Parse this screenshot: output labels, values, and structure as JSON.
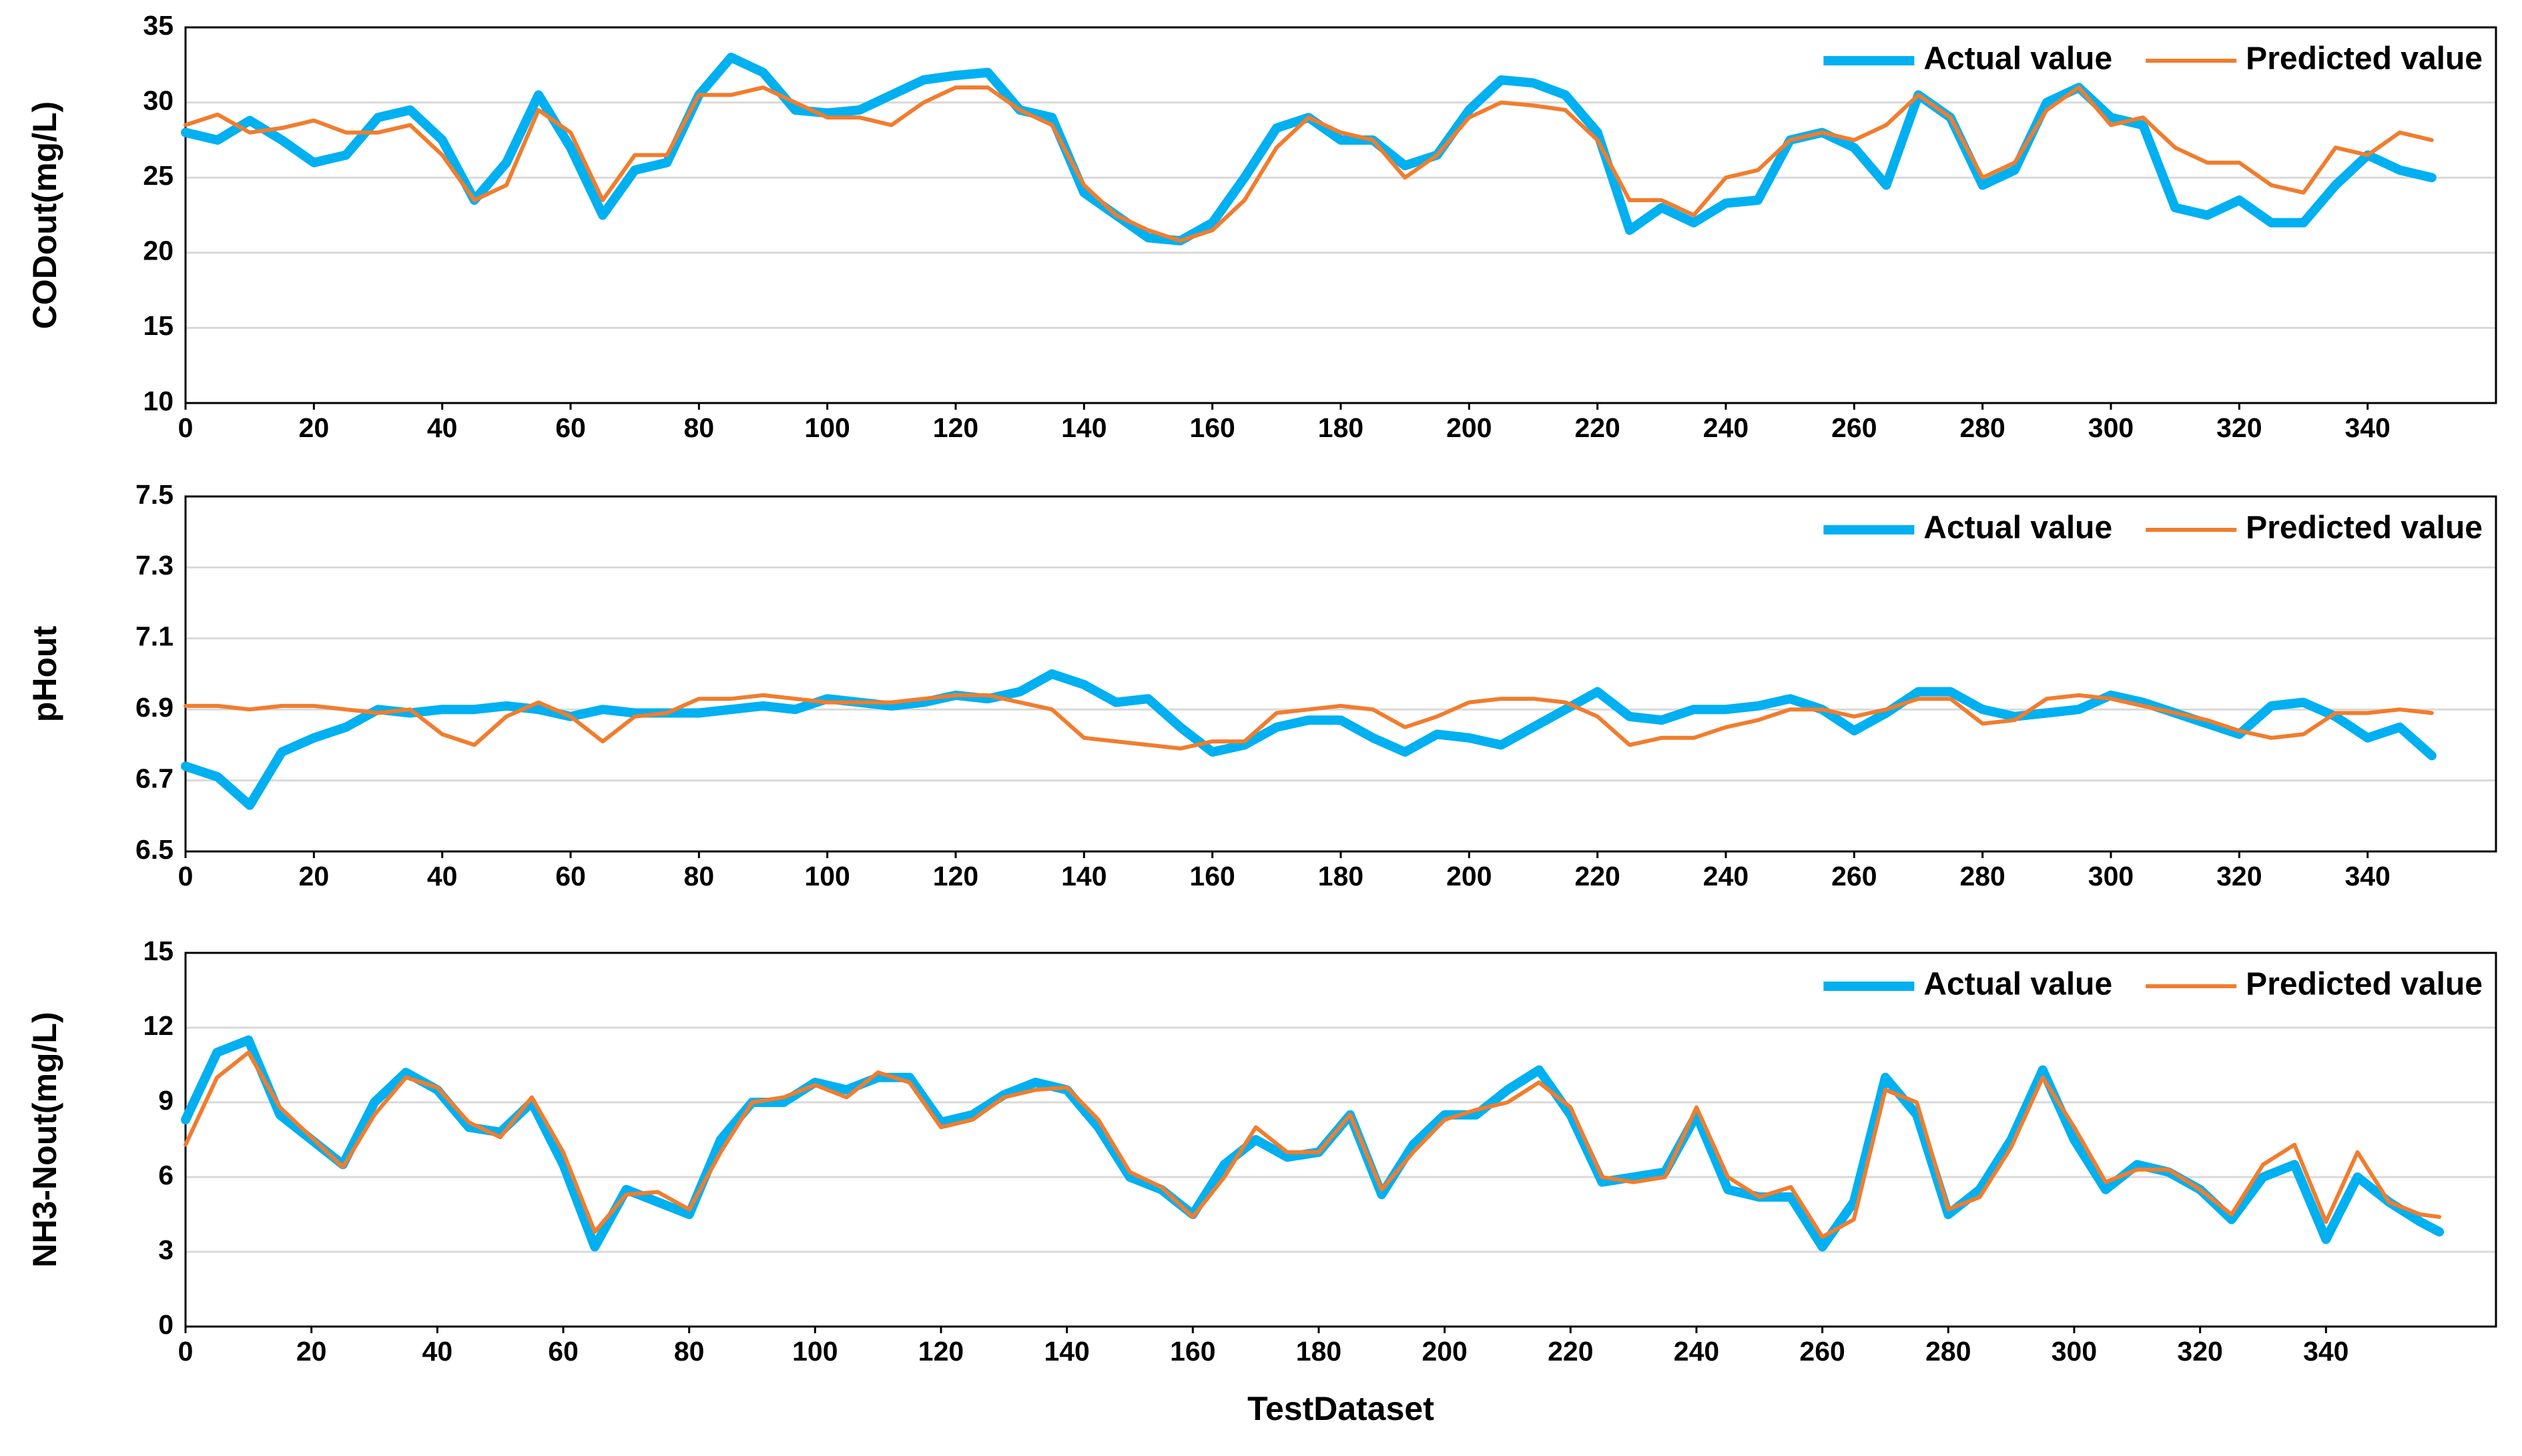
{
  "chart_data": [
    {
      "type": "line",
      "ylabel": "CODout(mg/L)",
      "xlim": [
        0,
        360
      ],
      "ylim": [
        10,
        35
      ],
      "yticks": [
        10,
        15,
        20,
        25,
        30,
        35
      ],
      "xticks": [
        0,
        20,
        40,
        60,
        80,
        100,
        120,
        140,
        160,
        180,
        200,
        220,
        240,
        260,
        280,
        300,
        320,
        340
      ],
      "grid": true,
      "legend": "upper right",
      "x": [
        0,
        5,
        10,
        15,
        20,
        25,
        30,
        35,
        40,
        45,
        50,
        55,
        60,
        65,
        70,
        75,
        80,
        85,
        90,
        95,
        100,
        105,
        110,
        115,
        120,
        125,
        130,
        135,
        140,
        145,
        150,
        155,
        160,
        165,
        170,
        175,
        180,
        185,
        190,
        195,
        200,
        205,
        210,
        215,
        220,
        225,
        230,
        235,
        240,
        245,
        250,
        255,
        260,
        265,
        270,
        275,
        280,
        285,
        290,
        295,
        300,
        305,
        310,
        315,
        320,
        325,
        330,
        335,
        340,
        345,
        350
      ],
      "series": [
        {
          "name": "Actual value",
          "color": "#00b0f0",
          "values": [
            28,
            27.5,
            28.8,
            27.5,
            26,
            26.5,
            29,
            29.5,
            27.5,
            23.5,
            26,
            30.5,
            27,
            22.5,
            25.5,
            26,
            30.5,
            33,
            32,
            29.5,
            29.3,
            29.5,
            30.5,
            31.5,
            31.8,
            32,
            29.5,
            29,
            24,
            22.5,
            21,
            20.8,
            22,
            25,
            28.3,
            29,
            27.5,
            27.5,
            25.8,
            26.5,
            29.5,
            31.5,
            31.3,
            30.5,
            28,
            21.5,
            23,
            22,
            23.3,
            23.5,
            27.5,
            28,
            27,
            24.5,
            30.5,
            29,
            24.5,
            25.5,
            30,
            31,
            29,
            28.5,
            23,
            22.5,
            23.5,
            22,
            22,
            24.5,
            26.5,
            25.5,
            25
          ]
        },
        {
          "name": "Predicted value",
          "color": "#f07d2e",
          "values": [
            28.5,
            29.2,
            28,
            28.3,
            28.8,
            28,
            28,
            28.5,
            26.5,
            23.5,
            24.5,
            29.5,
            28,
            23.5,
            26.5,
            26.5,
            30.5,
            30.5,
            31,
            30,
            29,
            29,
            28.5,
            30,
            31,
            31,
            29.5,
            28.5,
            24.5,
            22.5,
            21.5,
            20.8,
            21.5,
            23.5,
            27,
            29,
            28,
            27.5,
            25,
            26.5,
            29,
            30,
            29.8,
            29.5,
            27.5,
            23.5,
            23.5,
            22.5,
            25,
            25.5,
            27.5,
            28,
            27.5,
            28.5,
            30.5,
            29,
            25,
            26,
            29.5,
            31,
            28.5,
            29,
            27,
            26,
            26,
            24.5,
            24,
            27,
            26.5,
            28,
            27.5
          ]
        }
      ]
    },
    {
      "type": "line",
      "ylabel": "pHout",
      "xlim": [
        0,
        360
      ],
      "ylim": [
        6.5,
        7.5
      ],
      "yticks": [
        6.5,
        6.7,
        6.9,
        7.1,
        7.3,
        7.5
      ],
      "xticks": [
        0,
        20,
        40,
        60,
        80,
        100,
        120,
        140,
        160,
        180,
        200,
        220,
        240,
        260,
        280,
        300,
        320,
        340
      ],
      "grid": true,
      "legend": "upper right",
      "x": [
        0,
        5,
        10,
        15,
        20,
        25,
        30,
        35,
        40,
        45,
        50,
        55,
        60,
        65,
        70,
        75,
        80,
        85,
        90,
        95,
        100,
        105,
        110,
        115,
        120,
        125,
        130,
        135,
        140,
        145,
        150,
        155,
        160,
        165,
        170,
        175,
        180,
        185,
        190,
        195,
        200,
        205,
        210,
        215,
        220,
        225,
        230,
        235,
        240,
        245,
        250,
        255,
        260,
        265,
        270,
        275,
        280,
        285,
        290,
        295,
        300,
        305,
        310,
        315,
        320,
        325,
        330,
        335,
        340,
        345,
        350
      ],
      "series": [
        {
          "name": "Actual value",
          "color": "#00b0f0",
          "values": [
            6.74,
            6.71,
            6.63,
            6.78,
            6.82,
            6.85,
            6.9,
            6.89,
            6.9,
            6.9,
            6.91,
            6.9,
            6.88,
            6.9,
            6.89,
            6.89,
            6.89,
            6.9,
            6.91,
            6.9,
            6.93,
            6.92,
            6.91,
            6.92,
            6.94,
            6.93,
            6.95,
            7.0,
            6.97,
            6.92,
            6.93,
            6.85,
            6.78,
            6.8,
            6.85,
            6.87,
            6.87,
            6.82,
            6.78,
            6.83,
            6.82,
            6.8,
            6.85,
            6.9,
            6.95,
            6.88,
            6.87,
            6.9,
            6.9,
            6.91,
            6.93,
            6.9,
            6.84,
            6.89,
            6.95,
            6.95,
            6.9,
            6.88,
            6.89,
            6.9,
            6.94,
            6.92,
            6.89,
            6.86,
            6.83,
            6.91,
            6.92,
            6.88,
            6.82,
            6.85,
            6.77
          ]
        },
        {
          "name": "Predicted value",
          "color": "#f07d2e",
          "values": [
            6.91,
            6.91,
            6.9,
            6.91,
            6.91,
            6.9,
            6.89,
            6.9,
            6.83,
            6.8,
            6.88,
            6.92,
            6.88,
            6.81,
            6.88,
            6.89,
            6.93,
            6.93,
            6.94,
            6.93,
            6.92,
            6.92,
            6.92,
            6.93,
            6.94,
            6.94,
            6.92,
            6.9,
            6.82,
            6.81,
            6.8,
            6.79,
            6.81,
            6.81,
            6.89,
            6.9,
            6.91,
            6.9,
            6.85,
            6.88,
            6.92,
            6.93,
            6.93,
            6.92,
            6.88,
            6.8,
            6.82,
            6.82,
            6.85,
            6.87,
            6.9,
            6.9,
            6.88,
            6.9,
            6.93,
            6.93,
            6.86,
            6.87,
            6.93,
            6.94,
            6.93,
            6.91,
            6.89,
            6.87,
            6.84,
            6.82,
            6.83,
            6.89,
            6.89,
            6.9,
            6.89
          ]
        }
      ]
    },
    {
      "type": "line",
      "ylabel": "NH3-Nout(mg/L)",
      "xlabel": "TestDataset",
      "xlim": [
        0,
        367
      ],
      "ylim": [
        0,
        15
      ],
      "yticks": [
        0,
        3,
        6,
        9,
        12,
        15
      ],
      "xticks": [
        0,
        20,
        40,
        60,
        80,
        100,
        120,
        140,
        160,
        180,
        200,
        220,
        240,
        260,
        280,
        300,
        320,
        340
      ],
      "grid": true,
      "legend": "upper right",
      "x": [
        0,
        5,
        10,
        15,
        20,
        25,
        30,
        35,
        40,
        45,
        50,
        55,
        60,
        65,
        70,
        75,
        80,
        85,
        90,
        95,
        100,
        105,
        110,
        115,
        120,
        125,
        130,
        135,
        140,
        145,
        150,
        155,
        160,
        165,
        170,
        175,
        180,
        185,
        190,
        195,
        200,
        205,
        210,
        215,
        220,
        225,
        230,
        235,
        240,
        245,
        250,
        255,
        260,
        265,
        270,
        275,
        280,
        285,
        290,
        295,
        300,
        305,
        310,
        315,
        320,
        325,
        330,
        335,
        340,
        345,
        350,
        355,
        358
      ],
      "series": [
        {
          "name": "Actual value",
          "color": "#00b0f0",
          "values": [
            8.3,
            11,
            11.5,
            8.5,
            7.5,
            6.5,
            9,
            10.2,
            9.5,
            8,
            7.8,
            9,
            6.5,
            3.2,
            5.5,
            5,
            4.5,
            7.5,
            9,
            9,
            9.8,
            9.5,
            10,
            10,
            8.2,
            8.5,
            9.3,
            9.8,
            9.5,
            8,
            6,
            5.5,
            4.5,
            6.5,
            7.5,
            6.8,
            7,
            8.5,
            5.3,
            7.3,
            8.5,
            8.5,
            9.5,
            10.3,
            8.5,
            5.8,
            6,
            6.2,
            8.5,
            5.5,
            5.2,
            5.2,
            3.2,
            5,
            10,
            8.5,
            4.5,
            5.5,
            7.5,
            10.3,
            7.5,
            5.5,
            6.5,
            6.2,
            5.5,
            4.3,
            6,
            6.5,
            3.5,
            6,
            5,
            4.2,
            3.8
          ]
        },
        {
          "name": "Predicted value",
          "color": "#f07d2e",
          "values": [
            7.3,
            10,
            11,
            8.8,
            7.6,
            6.4,
            8.5,
            10,
            9.6,
            8.2,
            7.6,
            9.2,
            7,
            3.8,
            5.3,
            5.4,
            4.7,
            7,
            9,
            9.2,
            9.7,
            9.2,
            10.2,
            9.8,
            8,
            8.3,
            9.2,
            9.5,
            9.6,
            8.3,
            6.2,
            5.6,
            4.4,
            6,
            8,
            7,
            7,
            8.5,
            5.5,
            7,
            8.3,
            8.7,
            9,
            9.8,
            8.8,
            6,
            5.8,
            6,
            8.8,
            6,
            5.2,
            5.6,
            3.6,
            4.3,
            9.5,
            9,
            4.7,
            5.2,
            7.2,
            10,
            8,
            5.8,
            6.3,
            6.3,
            5.5,
            4.5,
            6.5,
            7.3,
            4.2,
            7,
            5,
            4.5,
            4.4
          ]
        }
      ]
    }
  ]
}
